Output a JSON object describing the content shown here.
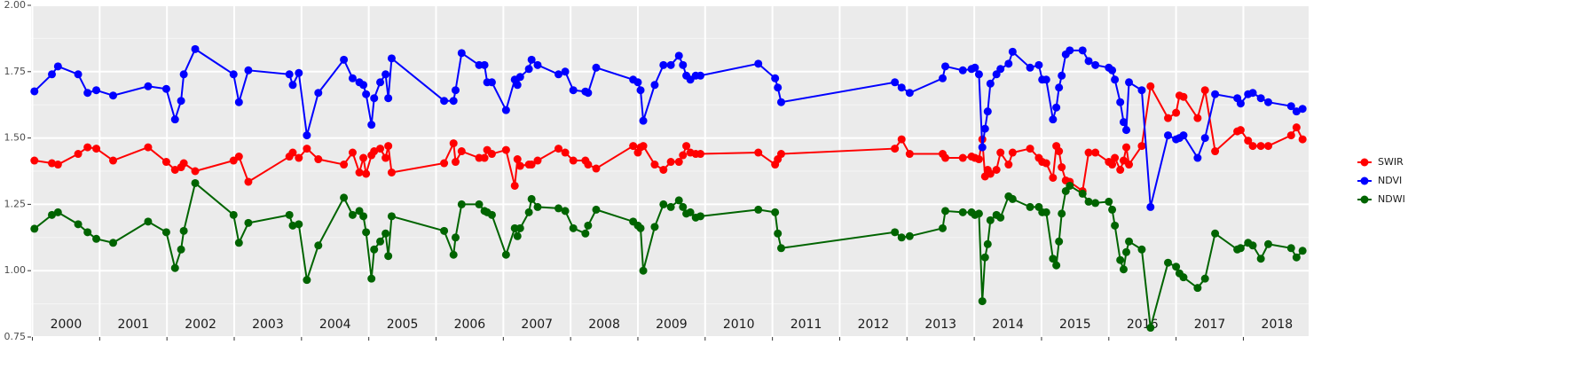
{
  "chart_data": {
    "type": "line",
    "x": [
      2000.03,
      2000.29,
      2000.38,
      2000.68,
      2000.82,
      2000.95,
      2001.2,
      2001.72,
      2001.99,
      2002.12,
      2002.21,
      2002.25,
      2002.42,
      2002.99,
      2003.07,
      2003.21,
      2003.82,
      2003.87,
      2003.96,
      2004.08,
      2004.25,
      2004.63,
      2004.76,
      2004.86,
      2004.92,
      2004.96,
      2005.04,
      2005.08,
      2005.17,
      2005.25,
      2005.29,
      2005.34,
      2006.12,
      2006.26,
      2006.29,
      2006.38,
      2006.64,
      2006.72,
      2006.76,
      2006.83,
      2007.04,
      2007.17,
      2007.21,
      2007.25,
      2007.38,
      2007.42,
      2007.51,
      2007.82,
      2007.92,
      2008.04,
      2008.22,
      2008.26,
      2008.38,
      2008.93,
      2009.0,
      2009.04,
      2009.08,
      2009.25,
      2009.38,
      2009.49,
      2009.61,
      2009.67,
      2009.72,
      2009.78,
      2009.86,
      2009.93,
      2010.79,
      2011.04,
      2011.08,
      2011.13,
      2012.82,
      2012.92,
      2013.04,
      2013.53,
      2013.57,
      2013.83,
      2013.96,
      2014.01,
      2014.07,
      2014.12,
      2014.16,
      2014.2,
      2014.24,
      2014.33,
      2014.39,
      2014.51,
      2014.57,
      2014.83,
      2014.96,
      2015.01,
      2015.07,
      2015.17,
      2015.22,
      2015.26,
      2015.3,
      2015.36,
      2015.42,
      2015.61,
      2015.7,
      2015.8,
      2016.0,
      2016.05,
      2016.09,
      2016.17,
      2016.22,
      2016.26,
      2016.3,
      2016.49,
      2016.62,
      2016.88,
      2017.0,
      2017.05,
      2017.11,
      2017.32,
      2017.43,
      2017.58,
      2017.91,
      2017.96,
      2018.07,
      2018.14,
      2018.26,
      2018.37,
      2018.71,
      2018.79,
      2018.88
    ],
    "series": [
      {
        "name": "SWIR",
        "color": "#ff0000",
        "values": [
          1.415,
          1.405,
          1.4,
          1.44,
          1.465,
          1.46,
          1.415,
          1.465,
          1.41,
          1.38,
          1.39,
          1.405,
          1.375,
          1.415,
          1.43,
          1.335,
          1.43,
          1.445,
          1.425,
          1.46,
          1.42,
          1.4,
          1.445,
          1.37,
          1.425,
          1.365,
          1.435,
          1.45,
          1.46,
          1.425,
          1.47,
          1.37,
          1.405,
          1.48,
          1.41,
          1.45,
          1.425,
          1.425,
          1.455,
          1.44,
          1.455,
          1.32,
          1.42,
          1.395,
          1.4,
          1.4,
          1.415,
          1.46,
          1.445,
          1.415,
          1.415,
          1.4,
          1.385,
          1.47,
          1.445,
          1.465,
          1.47,
          1.4,
          1.38,
          1.41,
          1.41,
          1.435,
          1.47,
          1.445,
          1.44,
          1.44,
          1.445,
          1.4,
          1.42,
          1.44,
          1.46,
          1.495,
          1.44,
          1.44,
          1.425,
          1.425,
          1.43,
          1.425,
          1.42,
          1.495,
          1.355,
          1.38,
          1.365,
          1.38,
          1.445,
          1.4,
          1.445,
          1.46,
          1.425,
          1.41,
          1.405,
          1.35,
          1.47,
          1.45,
          1.39,
          1.34,
          1.335,
          1.3,
          1.445,
          1.445,
          1.41,
          1.4,
          1.425,
          1.38,
          1.415,
          1.465,
          1.4,
          1.47,
          1.695,
          1.575,
          1.595,
          1.66,
          1.655,
          1.575,
          1.68,
          1.45,
          1.525,
          1.53,
          1.49,
          1.47,
          1.47,
          1.47,
          1.51,
          1.54,
          1.495
        ]
      },
      {
        "name": "NDVI",
        "color": "#0000ff",
        "values": [
          1.676,
          1.74,
          1.77,
          1.74,
          1.67,
          1.68,
          1.66,
          1.695,
          1.685,
          1.57,
          1.64,
          1.74,
          1.835,
          1.74,
          1.635,
          1.755,
          1.74,
          1.7,
          1.745,
          1.51,
          1.67,
          1.795,
          1.725,
          1.71,
          1.7,
          1.665,
          1.55,
          1.65,
          1.71,
          1.74,
          1.65,
          1.8,
          1.64,
          1.64,
          1.68,
          1.82,
          1.775,
          1.775,
          1.71,
          1.71,
          1.605,
          1.72,
          1.7,
          1.73,
          1.76,
          1.795,
          1.775,
          1.74,
          1.75,
          1.68,
          1.675,
          1.67,
          1.765,
          1.72,
          1.71,
          1.68,
          1.565,
          1.7,
          1.775,
          1.775,
          1.81,
          1.775,
          1.735,
          1.72,
          1.735,
          1.735,
          1.78,
          1.725,
          1.69,
          1.635,
          1.71,
          1.69,
          1.67,
          1.725,
          1.77,
          1.755,
          1.76,
          1.765,
          1.74,
          1.465,
          1.535,
          1.6,
          1.705,
          1.74,
          1.76,
          1.78,
          1.825,
          1.765,
          1.775,
          1.72,
          1.72,
          1.57,
          1.615,
          1.69,
          1.735,
          1.815,
          1.83,
          1.83,
          1.79,
          1.775,
          1.765,
          1.755,
          1.72,
          1.635,
          1.56,
          1.53,
          1.71,
          1.68,
          1.24,
          1.51,
          1.495,
          1.5,
          1.51,
          1.425,
          1.5,
          1.665,
          1.65,
          1.63,
          1.665,
          1.67,
          1.65,
          1.635,
          1.62,
          1.6,
          1.61
        ]
      },
      {
        "name": "NDWI",
        "color": "#006400",
        "values": [
          1.158,
          1.21,
          1.22,
          1.175,
          1.145,
          1.12,
          1.105,
          1.185,
          1.145,
          1.01,
          1.08,
          1.15,
          1.33,
          1.21,
          1.105,
          1.18,
          1.21,
          1.17,
          1.175,
          0.965,
          1.095,
          1.275,
          1.21,
          1.225,
          1.205,
          1.145,
          0.97,
          1.08,
          1.11,
          1.14,
          1.055,
          1.205,
          1.15,
          1.06,
          1.125,
          1.25,
          1.25,
          1.225,
          1.22,
          1.21,
          1.06,
          1.16,
          1.13,
          1.16,
          1.22,
          1.27,
          1.24,
          1.235,
          1.225,
          1.16,
          1.14,
          1.17,
          1.23,
          1.185,
          1.17,
          1.16,
          1.0,
          1.165,
          1.25,
          1.24,
          1.265,
          1.24,
          1.215,
          1.22,
          1.2,
          1.205,
          1.23,
          1.22,
          1.14,
          1.085,
          1.145,
          1.125,
          1.13,
          1.16,
          1.225,
          1.22,
          1.22,
          1.21,
          1.215,
          0.885,
          1.05,
          1.1,
          1.19,
          1.21,
          1.2,
          1.28,
          1.27,
          1.24,
          1.24,
          1.22,
          1.22,
          1.045,
          1.02,
          1.11,
          1.215,
          1.3,
          1.32,
          1.29,
          1.26,
          1.255,
          1.26,
          1.23,
          1.17,
          1.04,
          1.005,
          1.07,
          1.11,
          1.08,
          0.785,
          1.03,
          1.015,
          0.99,
          0.975,
          0.935,
          0.97,
          1.14,
          1.08,
          1.085,
          1.105,
          1.095,
          1.045,
          1.1,
          1.085,
          1.05,
          1.075
        ]
      }
    ],
    "xlim": [
      1999.98,
      2018.97
    ],
    "xticks": [
      2000,
      2001,
      2002,
      2003,
      2004,
      2005,
      2006,
      2007,
      2008,
      2009,
      2010,
      2011,
      2012,
      2013,
      2014,
      2015,
      2016,
      2017,
      2018
    ],
    "year_labels": [
      {
        "value": 2000.5,
        "label": "2000"
      },
      {
        "value": 2001.5,
        "label": "2001"
      },
      {
        "value": 2002.5,
        "label": "2002"
      },
      {
        "value": 2003.5,
        "label": "2003"
      },
      {
        "value": 2004.5,
        "label": "2004"
      },
      {
        "value": 2005.5,
        "label": "2005"
      },
      {
        "value": 2006.5,
        "label": "2006"
      },
      {
        "value": 2007.5,
        "label": "2007"
      },
      {
        "value": 2008.5,
        "label": "2008"
      },
      {
        "value": 2009.5,
        "label": "2009"
      },
      {
        "value": 2010.5,
        "label": "2010"
      },
      {
        "value": 2011.5,
        "label": "2011"
      },
      {
        "value": 2012.5,
        "label": "2012"
      },
      {
        "value": 2013.5,
        "label": "2013"
      },
      {
        "value": 2014.5,
        "label": "2014"
      },
      {
        "value": 2015.5,
        "label": "2015"
      },
      {
        "value": 2016.5,
        "label": "2016"
      },
      {
        "value": 2017.5,
        "label": "2017"
      },
      {
        "value": 2018.5,
        "label": "2018"
      }
    ],
    "ylim": [
      0.75,
      2.0
    ],
    "yticks": [
      {
        "value": 0.75,
        "label": "0.75"
      },
      {
        "value": 1.0,
        "label": "1.00"
      },
      {
        "value": 1.25,
        "label": "1.25"
      },
      {
        "value": 1.5,
        "label": "1.50"
      },
      {
        "value": 1.75,
        "label": "1.75"
      },
      {
        "value": 2.0,
        "label": "2.00"
      }
    ],
    "yminor": [
      0.875,
      1.125,
      1.375,
      1.625,
      1.875
    ],
    "grid": true,
    "legend": "right"
  }
}
